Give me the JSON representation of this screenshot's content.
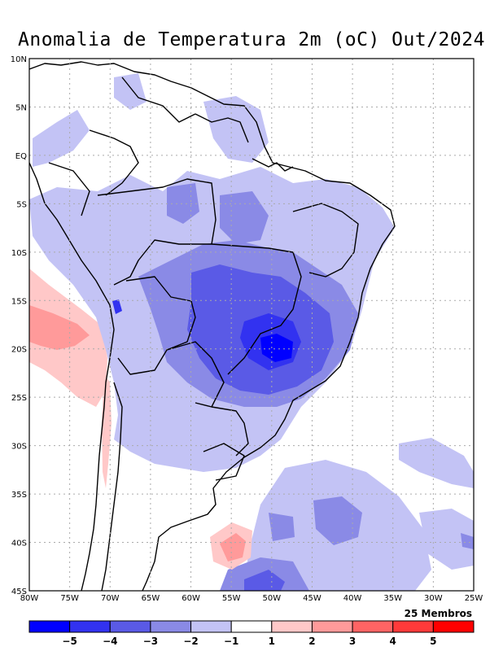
{
  "title": "Anomalia de Temperatura 2m (oC) Out/2024",
  "ensemble_note": "25 Membros",
  "axes": {
    "lat_labels": [
      "10N",
      "5N",
      "EQ",
      "5S",
      "10S",
      "15S",
      "20S",
      "25S",
      "30S",
      "35S",
      "40S",
      "45S"
    ],
    "lon_labels": [
      "80W",
      "75W",
      "70W",
      "65W",
      "60W",
      "55W",
      "50W",
      "45W",
      "40W",
      "35W",
      "30W",
      "25W"
    ],
    "lat_range": [
      10,
      -45
    ],
    "lon_range": [
      -80,
      -25
    ]
  },
  "colorbar": {
    "tick_labels": [
      "−5",
      "−4",
      "−3",
      "−2",
      "−1",
      "1",
      "2",
      "3",
      "4",
      "5"
    ],
    "colors": [
      "#0000ff",
      "#3232f0",
      "#5a5ae6",
      "#8a8ae6",
      "#c3c3f5",
      "#ffffff",
      "#ffc8c8",
      "#ff9a9a",
      "#ff6464",
      "#ff3a3a",
      "#ff0000"
    ]
  },
  "colors": {
    "grid": "#aaaaaa",
    "border": "#000000"
  }
}
